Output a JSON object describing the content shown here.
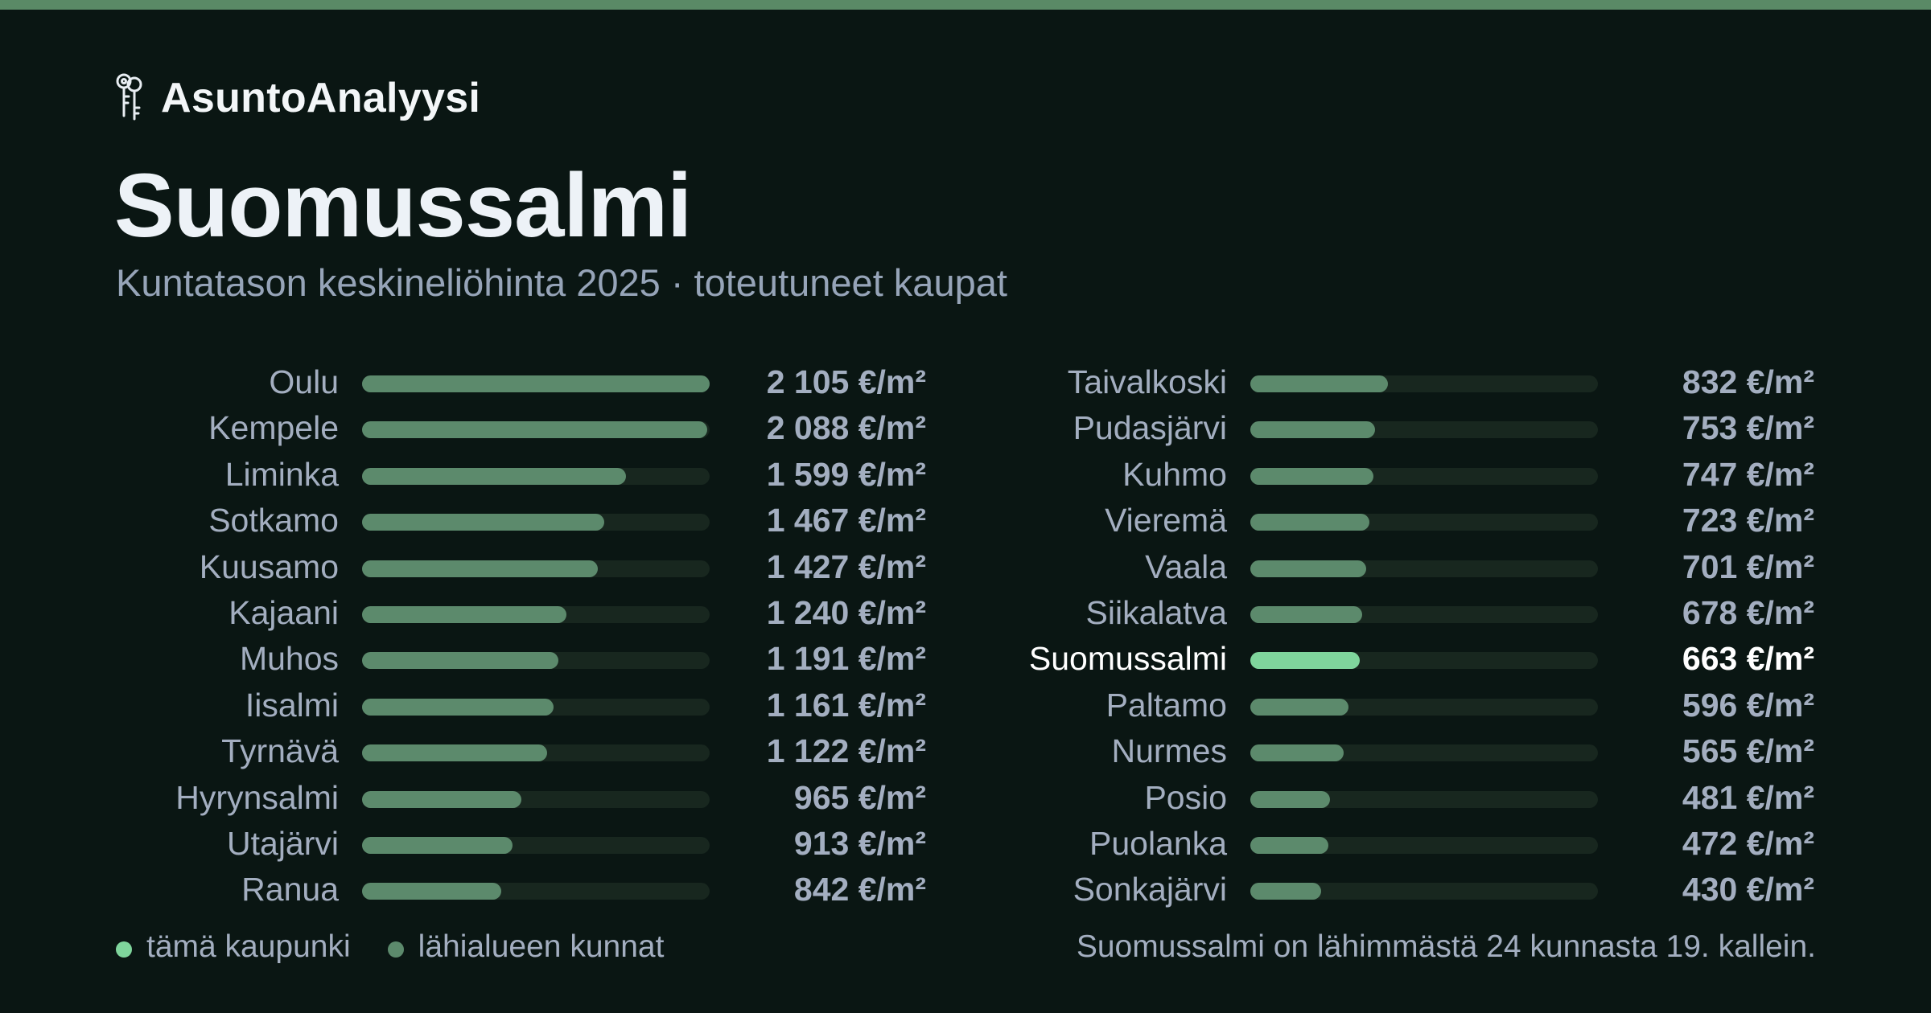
{
  "brand": {
    "name": "AsuntoAnalyysi",
    "icon": "keys-icon"
  },
  "title": "Suomussalmi",
  "subtitle": "Kuntatason keskineliöhinta 2025 · toteutuneet kaupat",
  "colors": {
    "background": "#0a1613",
    "accent_bar": "#5a8a66",
    "bar_fill": "#5c8a6c",
    "bar_highlight": "#7fd59c",
    "bar_track": "#18271f",
    "text_muted": "#a3aec0",
    "text_bright": "#ffffff"
  },
  "chart_data": {
    "type": "bar",
    "orientation": "horizontal",
    "unit": "€/m²",
    "xlim": [
      0,
      2105
    ],
    "highlight": "Suomussalmi",
    "categories": [
      "Oulu",
      "Kempele",
      "Liminka",
      "Sotkamo",
      "Kuusamo",
      "Kajaani",
      "Muhos",
      "Iisalmi",
      "Tyrnävä",
      "Hyrynsalmi",
      "Utajärvi",
      "Ranua",
      "Taivalkoski",
      "Pudasjärvi",
      "Kuhmo",
      "Vieremä",
      "Vaala",
      "Siikalatva",
      "Suomussalmi",
      "Paltamo",
      "Nurmes",
      "Posio",
      "Puolanka",
      "Sonkajärvi"
    ],
    "values": [
      2105,
      2088,
      1599,
      1467,
      1427,
      1240,
      1191,
      1161,
      1122,
      965,
      913,
      842,
      832,
      753,
      747,
      723,
      701,
      678,
      663,
      596,
      565,
      481,
      472,
      430
    ],
    "value_labels": [
      "2 105 €/m²",
      "2 088 €/m²",
      "1 599 €/m²",
      "1 467 €/m²",
      "1 427 €/m²",
      "1 240 €/m²",
      "1 191 €/m²",
      "1 161 €/m²",
      "1 122 €/m²",
      "965 €/m²",
      "913 €/m²",
      "842 €/m²",
      "832 €/m²",
      "753 €/m²",
      "747 €/m²",
      "723 €/m²",
      "701 €/m²",
      "678 €/m²",
      "663 €/m²",
      "596 €/m²",
      "565 €/m²",
      "481 €/m²",
      "472 €/m²",
      "430 €/m²"
    ],
    "columns": 2
  },
  "legend": {
    "this_city": "tämä kaupunki",
    "nearby": "lähialueen kunnat"
  },
  "footnote": "Suomussalmi on lähimmästä 24 kunnasta 19. kallein."
}
